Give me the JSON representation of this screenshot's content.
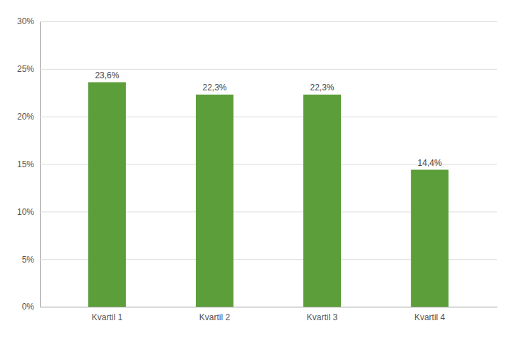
{
  "chart_data": {
    "type": "bar",
    "categories": [
      "Kvartil 1",
      "Kvartil 2",
      "Kvartil 3",
      "Kvartil 4"
    ],
    "values": [
      0.236,
      0.223,
      0.223,
      0.144
    ],
    "value_labels": [
      "23,6%",
      "22,3%",
      "22,3%",
      "14,4%"
    ],
    "color": "#5b9e3a",
    "ylim": [
      0,
      0.3
    ],
    "yticks": [
      {
        "value": 0,
        "label": "0%"
      },
      {
        "value": 0.05,
        "label": "5%"
      },
      {
        "value": 0.1,
        "label": "10%"
      },
      {
        "value": 0.15,
        "label": "15%"
      },
      {
        "value": 0.2,
        "label": "20%"
      },
      {
        "value": 0.25,
        "label": "25%"
      },
      {
        "value": 0.3,
        "label": "30%"
      }
    ],
    "grid": true,
    "data_labels": true
  }
}
